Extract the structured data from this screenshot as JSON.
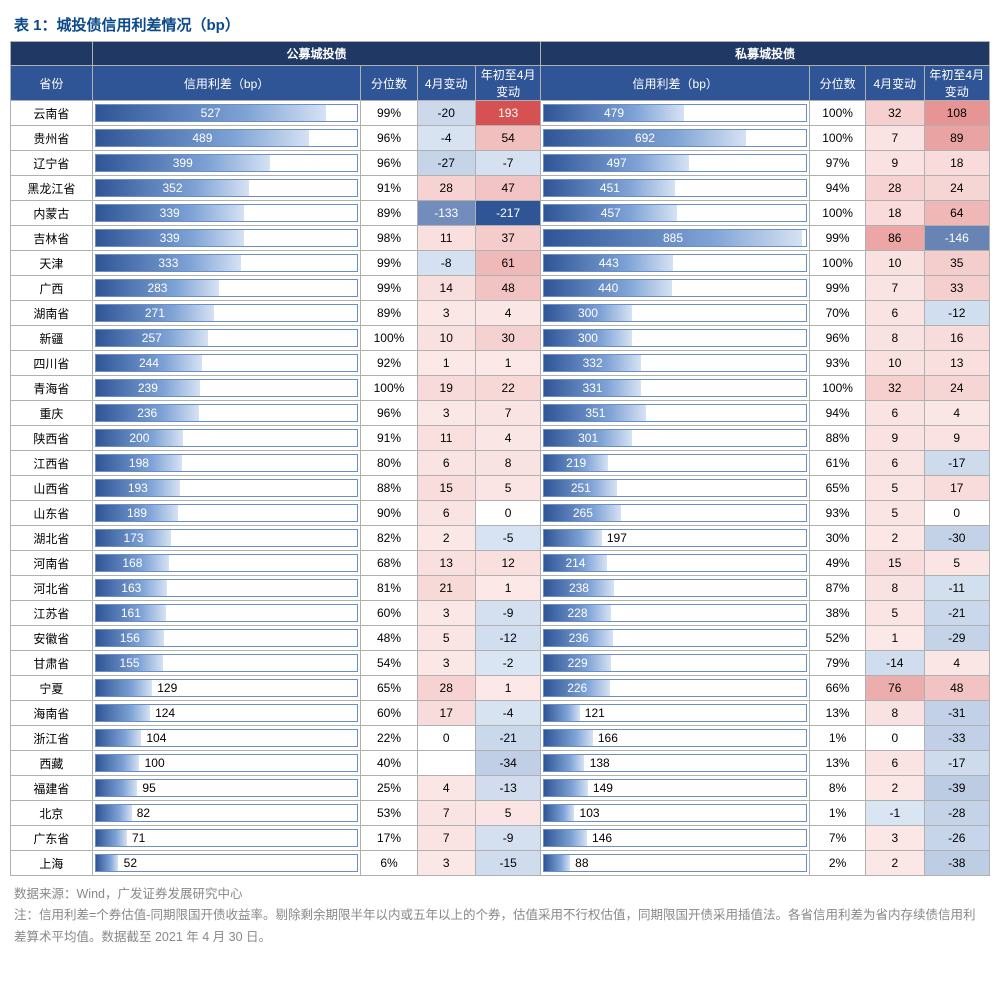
{
  "title": "表 1：城投债信用利差情况（bp）",
  "header": {
    "group1": "公募城投债",
    "group2": "私募城投债",
    "prov": "省份",
    "spread": "信用利差（bp）",
    "pct": "分位数",
    "chgA": "4月变动",
    "chgB": "年初至4月变动"
  },
  "bar_max1": 600,
  "bar_max2": 900,
  "heat": {
    "min": -217,
    "max": 193,
    "neg_dark": "#2f5597",
    "neg_light": "#dbe6f4",
    "pos_light": "#fbe9e8",
    "pos_dark": "#d65252",
    "zero": "#ffffff"
  },
  "rows": [
    {
      "prov": "云南省",
      "s1": 527,
      "p1": "99%",
      "a1": -20,
      "b1": 193,
      "s2": 479,
      "p2": "100%",
      "a2": 32,
      "b2": 108
    },
    {
      "prov": "贵州省",
      "s1": 489,
      "p1": "96%",
      "a1": -4,
      "b1": 54,
      "s2": 692,
      "p2": "100%",
      "a2": 7,
      "b2": 89
    },
    {
      "prov": "辽宁省",
      "s1": 399,
      "p1": "96%",
      "a1": -27,
      "b1": -7,
      "s2": 497,
      "p2": "97%",
      "a2": 9,
      "b2": 18
    },
    {
      "prov": "黑龙江省",
      "s1": 352,
      "p1": "91%",
      "a1": 28,
      "b1": 47,
      "s2": 451,
      "p2": "94%",
      "a2": 28,
      "b2": 24
    },
    {
      "prov": "内蒙古",
      "s1": 339,
      "p1": "89%",
      "a1": -133,
      "b1": -217,
      "s2": 457,
      "p2": "100%",
      "a2": 18,
      "b2": 64
    },
    {
      "prov": "吉林省",
      "s1": 339,
      "p1": "98%",
      "a1": 11,
      "b1": 37,
      "s2": 885,
      "p2": "99%",
      "a2": 86,
      "b2": -146
    },
    {
      "prov": "天津",
      "s1": 333,
      "p1": "99%",
      "a1": -8,
      "b1": 61,
      "s2": 443,
      "p2": "100%",
      "a2": 10,
      "b2": 35
    },
    {
      "prov": "广西",
      "s1": 283,
      "p1": "99%",
      "a1": 14,
      "b1": 48,
      "s2": 440,
      "p2": "99%",
      "a2": 7,
      "b2": 33
    },
    {
      "prov": "湖南省",
      "s1": 271,
      "p1": "89%",
      "a1": 3,
      "b1": 4,
      "s2": 300,
      "p2": "70%",
      "a2": 6,
      "b2": -12
    },
    {
      "prov": "新疆",
      "s1": 257,
      "p1": "100%",
      "a1": 10,
      "b1": 30,
      "s2": 300,
      "p2": "96%",
      "a2": 8,
      "b2": 16
    },
    {
      "prov": "四川省",
      "s1": 244,
      "p1": "92%",
      "a1": 1,
      "b1": 1,
      "s2": 332,
      "p2": "93%",
      "a2": 10,
      "b2": 13
    },
    {
      "prov": "青海省",
      "s1": 239,
      "p1": "100%",
      "a1": 19,
      "b1": 22,
      "s2": 331,
      "p2": "100%",
      "a2": 32,
      "b2": 24
    },
    {
      "prov": "重庆",
      "s1": 236,
      "p1": "96%",
      "a1": 3,
      "b1": 7,
      "s2": 351,
      "p2": "94%",
      "a2": 6,
      "b2": 4
    },
    {
      "prov": "陕西省",
      "s1": 200,
      "p1": "91%",
      "a1": 11,
      "b1": 4,
      "s2": 301,
      "p2": "88%",
      "a2": 9,
      "b2": 9
    },
    {
      "prov": "江西省",
      "s1": 198,
      "p1": "80%",
      "a1": 6,
      "b1": 8,
      "s2": 219,
      "p2": "61%",
      "a2": 6,
      "b2": -17
    },
    {
      "prov": "山西省",
      "s1": 193,
      "p1": "88%",
      "a1": 15,
      "b1": 5,
      "s2": 251,
      "p2": "65%",
      "a2": 5,
      "b2": 17
    },
    {
      "prov": "山东省",
      "s1": 189,
      "p1": "90%",
      "a1": 6,
      "b1": 0,
      "s2": 265,
      "p2": "93%",
      "a2": 5,
      "b2": 0
    },
    {
      "prov": "湖北省",
      "s1": 173,
      "p1": "82%",
      "a1": 2,
      "b1": -5,
      "s2": 197,
      "p2": "30%",
      "a2": 2,
      "b2": -30
    },
    {
      "prov": "河南省",
      "s1": 168,
      "p1": "68%",
      "a1": 13,
      "b1": 12,
      "s2": 214,
      "p2": "49%",
      "a2": 15,
      "b2": 5
    },
    {
      "prov": "河北省",
      "s1": 163,
      "p1": "81%",
      "a1": 21,
      "b1": 1,
      "s2": 238,
      "p2": "87%",
      "a2": 8,
      "b2": -11
    },
    {
      "prov": "江苏省",
      "s1": 161,
      "p1": "60%",
      "a1": 3,
      "b1": -9,
      "s2": 228,
      "p2": "38%",
      "a2": 5,
      "b2": -21
    },
    {
      "prov": "安徽省",
      "s1": 156,
      "p1": "48%",
      "a1": 5,
      "b1": -12,
      "s2": 236,
      "p2": "52%",
      "a2": 1,
      "b2": -29
    },
    {
      "prov": "甘肃省",
      "s1": 155,
      "p1": "54%",
      "a1": 3,
      "b1": -2,
      "s2": 229,
      "p2": "79%",
      "a2": -14,
      "b2": 4
    },
    {
      "prov": "宁夏",
      "s1": 129,
      "p1": "65%",
      "a1": 28,
      "b1": 1,
      "s2": 226,
      "p2": "66%",
      "a2": 76,
      "b2": 48
    },
    {
      "prov": "海南省",
      "s1": 124,
      "p1": "60%",
      "a1": 17,
      "b1": -4,
      "s2": 121,
      "p2": "13%",
      "a2": 8,
      "b2": -31
    },
    {
      "prov": "浙江省",
      "s1": 104,
      "p1": "22%",
      "a1": 0,
      "b1": -21,
      "s2": 166,
      "p2": "1%",
      "a2": 0,
      "b2": -33
    },
    {
      "prov": "西藏",
      "s1": 100,
      "p1": "40%",
      "a1": "",
      "b1": -34,
      "s2": 138,
      "p2": "13%",
      "a2": 6,
      "b2": -17
    },
    {
      "prov": "福建省",
      "s1": 95,
      "p1": "25%",
      "a1": 4,
      "b1": -13,
      "s2": 149,
      "p2": "8%",
      "a2": 2,
      "b2": -39
    },
    {
      "prov": "北京",
      "s1": 82,
      "p1": "53%",
      "a1": 7,
      "b1": 5,
      "s2": 103,
      "p2": "1%",
      "a2": -1,
      "b2": -28
    },
    {
      "prov": "广东省",
      "s1": 71,
      "p1": "17%",
      "a1": 7,
      "b1": -9,
      "s2": 146,
      "p2": "7%",
      "a2": 3,
      "b2": -26
    },
    {
      "prov": "上海",
      "s1": 52,
      "p1": "6%",
      "a1": 3,
      "b1": -15,
      "s2": 88,
      "p2": "2%",
      "a2": 2,
      "b2": -38
    }
  ],
  "footer": {
    "line1": "数据来源：Wind，广发证券发展研究中心",
    "line2": "注：信用利差=个券估值-同期限国开债收益率。剔除剩余期限半年以内或五年以上的个券，估值采用不行权估值，同期限国开债采用插值法。各省信用利差为省内存续债信用利差算术平均值。数据截至 2021 年 4 月 30 日。"
  }
}
